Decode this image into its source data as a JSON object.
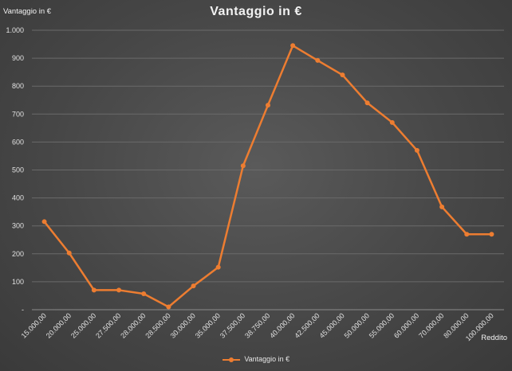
{
  "chart_data": {
    "type": "line",
    "title": "Vantaggio in €",
    "ylabel": "Vantaggio in €",
    "xlabel": "Reddito",
    "categories": [
      "15.000,00",
      "20.000,00",
      "25.000,00",
      "27.500,00",
      "28.000,00",
      "28.500,00",
      "30.000,00",
      "35.000,00",
      "37.500,00",
      "38.750,00",
      "40.000,00",
      "42.500,00",
      "45.000,00",
      "50.000,00",
      "55.000,00",
      "60.000,00",
      "70.000,00",
      "80.000,00",
      "100.000,00"
    ],
    "y_ticks": [
      "-",
      "100",
      "200",
      "300",
      "400",
      "500",
      "600",
      "700",
      "800",
      "900",
      "1.000"
    ],
    "ylim": [
      0,
      1000
    ],
    "series": [
      {
        "name": "Vantaggio in €",
        "color": "#ed7d31",
        "values": [
          315,
          203,
          70,
          70,
          57,
          10,
          85,
          152,
          515,
          732,
          945,
          892,
          840,
          740,
          670,
          570,
          368,
          270,
          270
        ]
      }
    ],
    "grid": true,
    "legend_position": "bottom"
  }
}
